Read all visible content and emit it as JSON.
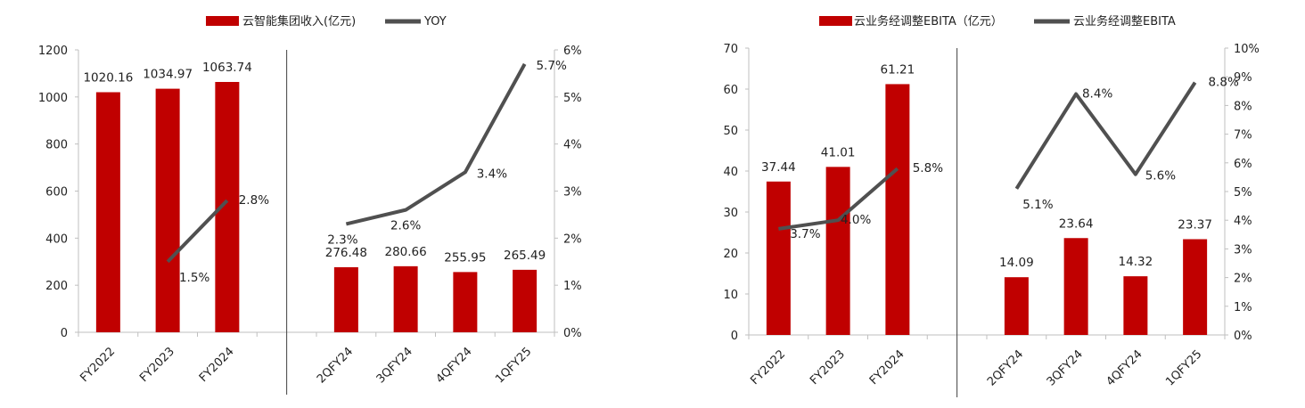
{
  "chart_data": [
    {
      "type": "bar",
      "legend": {
        "bar_label": "云智能集团收入(亿元)",
        "line_label": "YOY",
        "placement": "top-center"
      },
      "categories": [
        "FY2022",
        "FY2023",
        "FY2024",
        "",
        "2QFY24",
        "3QFY24",
        "4QFY24",
        "1QFY25"
      ],
      "bar_values": [
        1020.16,
        1034.97,
        1063.74,
        null,
        276.48,
        280.66,
        255.95,
        265.49
      ],
      "bar_labels": [
        "1020.16",
        "1034.97",
        "1063.74",
        "",
        "276.48",
        "280.66",
        "255.95",
        "265.49"
      ],
      "line_segments": [
        {
          "points": [
            [
              1,
              1.5
            ],
            [
              2,
              2.8
            ]
          ],
          "labels": [
            "1.5%",
            "2.8%"
          ]
        },
        {
          "points": [
            [
              4,
              2.3
            ],
            [
              5,
              2.6
            ],
            [
              6,
              3.4
            ],
            [
              7,
              5.7
            ]
          ],
          "labels": [
            "2.3%",
            "2.6%",
            "3.4%",
            "5.7%"
          ]
        }
      ],
      "y_left": {
        "min": 0,
        "max": 1200,
        "step": 200,
        "ticks": [
          "0",
          "200",
          "400",
          "600",
          "800",
          "1000",
          "1200"
        ]
      },
      "y_right": {
        "min": 0,
        "max": 6,
        "step": 1,
        "ticks": [
          "0%",
          "1%",
          "2%",
          "3%",
          "4%",
          "5%",
          "6%"
        ]
      },
      "divider_after_index": 3,
      "colors": {
        "bar": "#c00000",
        "line": "#505050"
      }
    },
    {
      "type": "bar",
      "legend": {
        "bar_label": "云业务经调整EBITA（亿元）",
        "line_label": "云业务经调整EBITA",
        "placement": "top-center"
      },
      "categories": [
        "FY2022",
        "FY2023",
        "FY2024",
        "",
        "2QFY24",
        "3QFY24",
        "4QFY24",
        "1QFY25"
      ],
      "bar_values": [
        37.44,
        41.01,
        61.21,
        null,
        14.09,
        23.64,
        14.32,
        23.37
      ],
      "bar_labels": [
        "37.44",
        "41.01",
        "61.21",
        "",
        "14.09",
        "23.64",
        "14.32",
        "23.37"
      ],
      "line_segments": [
        {
          "points": [
            [
              0,
              3.7
            ],
            [
              1,
              4.0
            ],
            [
              2,
              5.8
            ]
          ],
          "labels": [
            "3.7%",
            "4.0%",
            "5.8%"
          ]
        },
        {
          "points": [
            [
              4,
              5.1
            ],
            [
              5,
              8.4
            ],
            [
              6,
              5.6
            ],
            [
              7,
              8.8
            ]
          ],
          "labels": [
            "5.1%",
            "8.4%",
            "5.6%",
            "8.8%"
          ]
        }
      ],
      "y_left": {
        "min": 0,
        "max": 70,
        "step": 10,
        "ticks": [
          "0",
          "10",
          "20",
          "30",
          "40",
          "50",
          "60",
          "70"
        ]
      },
      "y_right": {
        "min": 0,
        "max": 10,
        "step": 1,
        "ticks": [
          "0%",
          "1%",
          "2%",
          "3%",
          "4%",
          "5%",
          "6%",
          "7%",
          "8%",
          "9%",
          "10%"
        ]
      },
      "divider_after_index": 3,
      "colors": {
        "bar": "#c00000",
        "line": "#505050"
      }
    }
  ]
}
